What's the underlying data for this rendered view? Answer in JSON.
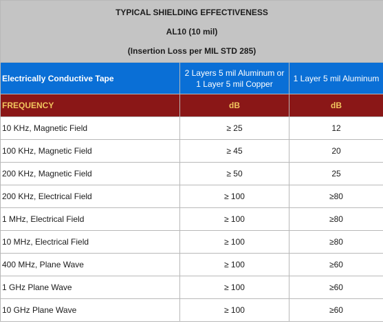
{
  "title": {
    "line1": "TYPICAL SHIELDING EFFECTIVENESS",
    "line2": "AL10 (10 mil)",
    "line3": "(Insertion Loss per MIL STD 285)"
  },
  "header": {
    "col0": "Electrically Conductive Tape",
    "col1_line1": "2 Layers 5 mil Aluminum or",
    "col1_line2": "1 Layer 5 mil Copper",
    "col2": "1 Layer 5 mil Aluminum"
  },
  "subheader": {
    "col0": "FREQUENCY",
    "col1": "dB",
    "col2": "dB"
  },
  "rows": [
    {
      "frequency": "10 KHz, Magnetic Field",
      "val1": "≥  25",
      "val2": "12"
    },
    {
      "frequency": "100 KHz, Magnetic Field",
      "val1": "≥  45",
      "val2": "20"
    },
    {
      "frequency": "200 KHz, Magnetic Field",
      "val1": "≥  50",
      "val2": "25"
    },
    {
      "frequency": "200 KHz, Electrical Field",
      "val1": "≥  100",
      "val2": "≥80"
    },
    {
      "frequency": "1 MHz, Electrical Field",
      "val1": "≥  100",
      "val2": "≥80"
    },
    {
      "frequency": "10 MHz, Electrical Field",
      "val1": "≥  100",
      "val2": "≥80"
    },
    {
      "frequency": "400 MHz, Plane Wave",
      "val1": "≥  100",
      "val2": "≥60"
    },
    {
      "frequency": "1 GHz Plane Wave",
      "val1": "≥ 100",
      "val2": "≥60"
    },
    {
      "frequency": "10 GHz Plane Wave",
      "val1": "≥  100",
      "val2": "≥60"
    }
  ],
  "colors": {
    "title_bg": "#c4c4c4",
    "header_bg": "#0a6fd6",
    "subheader_bg": "#8a1717",
    "subheader_text": "#f2c65e"
  }
}
